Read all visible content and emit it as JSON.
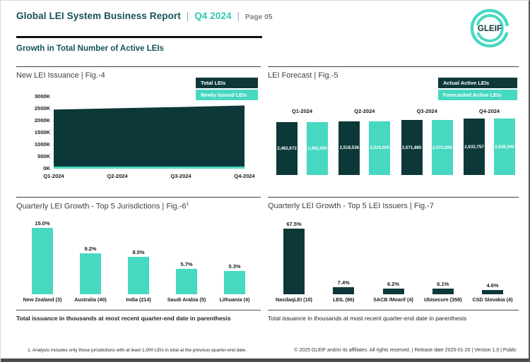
{
  "header": {
    "title": "Global LEI System Business Report",
    "sep1": "|",
    "period": "Q4 2024",
    "sep2": "|",
    "page": "Page 05",
    "logo_text": "GLEIF"
  },
  "section_title": "Growth in Total Number of Active LEIs",
  "colors": {
    "dark_teal": "#0c3839",
    "mint": "#47d8c1",
    "header_teal": "#15525a",
    "period_mint": "#33c7b0"
  },
  "chart_data": [
    {
      "id": "fig4",
      "type": "area",
      "title": "New LEI Issuance | Fig.-4",
      "x": [
        "Q1-2024",
        "Q2-2024",
        "Q3-2024",
        "Q4-2024"
      ],
      "y_ticks": [
        "3000K",
        "2500K",
        "2000K",
        "1500K",
        "1000K",
        "500K",
        "0K"
      ],
      "ylim": [
        0,
        3000000
      ],
      "grid": false,
      "legend_position": "top-right",
      "legend": [
        "Total LEIs",
        "Newly Issued LEIs"
      ],
      "series": [
        {
          "name": "Total LEIs",
          "values": [
            2462672,
            2518536,
            2571885,
            2633757
          ]
        },
        {
          "name": "Newly Issued LEIs",
          "values": [
            60000,
            60000,
            60000,
            60000
          ]
        }
      ]
    },
    {
      "id": "fig5",
      "type": "bar",
      "title": "LEI Forecast | Fig.-5",
      "categories": [
        "Q1-2024",
        "Q2-2024",
        "Q3-2024",
        "Q4-2024"
      ],
      "legend_position": "top-right",
      "legend": [
        "Actual Active LEIs",
        "Forecasted Active LEIs"
      ],
      "series": [
        {
          "name": "Actual Active LEIs",
          "values": [
            2462672,
            2518536,
            2571885,
            2633757
          ],
          "labels": [
            "2,462,672",
            "2,518,536",
            "2,571,885",
            "2,633,757"
          ]
        },
        {
          "name": "Forecasted Active LEIs",
          "values": [
            2462000,
            2519000,
            2572000,
            2638000
          ],
          "labels": [
            "2,462,000",
            "2,519,000",
            "2,572,000",
            "2,638,000"
          ]
        }
      ]
    },
    {
      "id": "fig6",
      "type": "bar",
      "title": "Quarterly LEI Growth - Top 5 Jurisdictions | Fig.-6",
      "title_sup": "1",
      "categories": [
        "New Zealand (3)",
        "Australia (40)",
        "India (214)",
        "Saudi Arabia (5)",
        "Lithuania (4)"
      ],
      "values": [
        15.0,
        9.2,
        8.5,
        5.7,
        5.3
      ],
      "labels": [
        "15.0%",
        "9.2%",
        "8.5%",
        "5.7%",
        "5.3%"
      ],
      "ylim": [
        0,
        16
      ]
    },
    {
      "id": "fig7",
      "type": "bar",
      "title": "Quarterly LEI Growth - Top 5 LEI Issuers | Fig.-7",
      "categories": [
        "NasdaqLEI (10)",
        "LEIL (86)",
        "SACB /Moarif (4)",
        "Ubisecure (358)",
        "CSD Slovakia (4)"
      ],
      "values": [
        67.5,
        7.4,
        6.2,
        6.1,
        4.6
      ],
      "labels": [
        "67.5%",
        "7.4%",
        "6.2%",
        "6.1%",
        "4.6%"
      ],
      "ylim": [
        0,
        70
      ]
    }
  ],
  "notes": {
    "left": "Total issuance in thousands at most recent quarter-end date in parenthesis",
    "right": "Total issuance in thousands at most recent quarter-end date in parenthesis"
  },
  "footnote": "1. Analysis includes only those jurisdictions with at least 1,000 LEIs in total at the previous quarter-end date.",
  "copyright": "© 2025 GLEIF and/or its affiliates. All rights reserved.  |  Release date 2025-01-20  |  Version 1.0  |  Public"
}
